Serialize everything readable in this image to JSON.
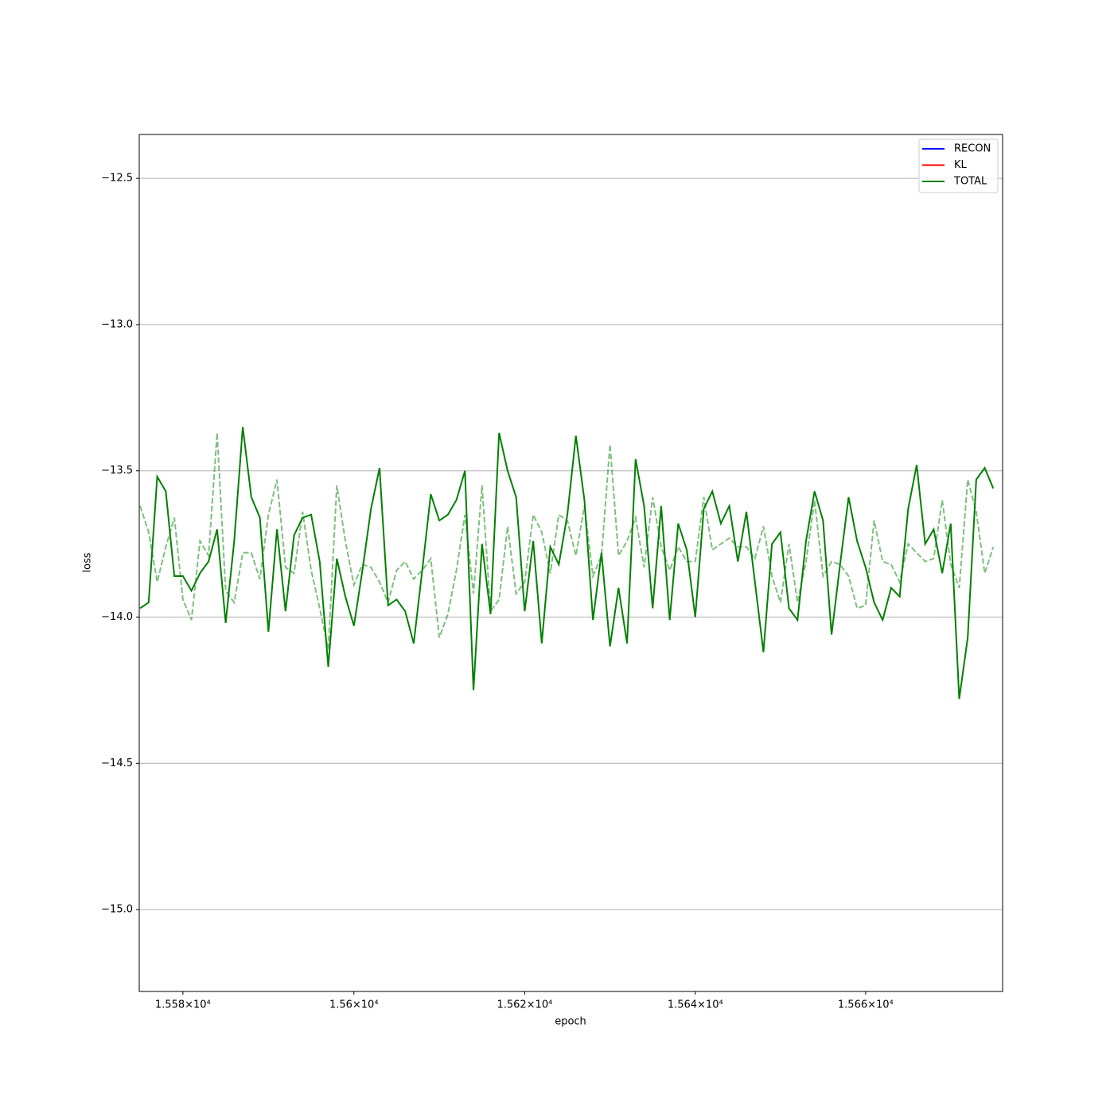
{
  "chart_data": {
    "type": "line",
    "xlabel": "epoch",
    "ylabel": "loss",
    "x": [
      15575,
      15576,
      15577,
      15578,
      15579,
      15580,
      15581,
      15582,
      15583,
      15584,
      15585,
      15586,
      15587,
      15588,
      15589,
      15590,
      15591,
      15592,
      15593,
      15594,
      15595,
      15596,
      15597,
      15598,
      15599,
      15600,
      15601,
      15602,
      15603,
      15604,
      15605,
      15606,
      15607,
      15608,
      15609,
      15610,
      15611,
      15612,
      15613,
      15614,
      15615,
      15616,
      15617,
      15618,
      15619,
      15620,
      15621,
      15622,
      15623,
      15624,
      15625,
      15626,
      15627,
      15628,
      15629,
      15630,
      15631,
      15632,
      15633,
      15634,
      15635,
      15636,
      15637,
      15638,
      15639,
      15640,
      15641,
      15642,
      15643,
      15644,
      15645,
      15646,
      15647,
      15648,
      15649,
      15650,
      15651,
      15652,
      15653,
      15654,
      15655,
      15656,
      15657,
      15658,
      15659,
      15660,
      15661,
      15662,
      15663,
      15664,
      15665,
      15666,
      15667,
      15668,
      15669,
      15670,
      15671,
      15672,
      15673,
      15674,
      15675
    ],
    "series": [
      {
        "color": "#008000",
        "dashed": true,
        "opacity": 0.5,
        "values": [
          -13.62,
          -13.71,
          -13.88,
          -13.76,
          -13.66,
          -13.94,
          -14.01,
          -13.74,
          -13.79,
          -13.37,
          -13.91,
          -13.95,
          -13.78,
          -13.78,
          -13.87,
          -13.65,
          -13.53,
          -13.83,
          -13.85,
          -13.64,
          -13.84,
          -13.97,
          -14.11,
          -13.55,
          -13.74,
          -13.89,
          -13.82,
          -13.83,
          -13.88,
          -13.95,
          -13.84,
          -13.81,
          -13.87,
          -13.84,
          -13.8,
          -14.07,
          -13.99,
          -13.84,
          -13.65,
          -13.92,
          -13.55,
          -13.98,
          -13.94,
          -13.69,
          -13.92,
          -13.88,
          -13.65,
          -13.71,
          -13.85,
          -13.65,
          -13.67,
          -13.79,
          -13.62,
          -13.86,
          -13.79,
          -13.41,
          -13.79,
          -13.74,
          -13.66,
          -13.83,
          -13.59,
          -13.76,
          -13.84,
          -13.76,
          -13.81,
          -13.81,
          -13.59,
          -13.77,
          -13.75,
          -13.73,
          -13.76,
          -13.76,
          -13.8,
          -13.69,
          -13.86,
          -13.95,
          -13.75,
          -13.95,
          -13.81,
          -13.6,
          -13.86,
          -13.81,
          -13.82,
          -13.86,
          -13.97,
          -13.96,
          -13.67,
          -13.81,
          -13.82,
          -13.88,
          -13.75,
          -13.78,
          -13.81,
          -13.8,
          -13.6,
          -13.82,
          -13.9,
          -13.53,
          -13.64,
          -13.85,
          -13.76
        ]
      },
      {
        "color": "#008000",
        "dashed": false,
        "opacity": 1,
        "values": [
          -13.97,
          -13.95,
          -13.52,
          -13.57,
          -13.86,
          -13.86,
          -13.91,
          -13.85,
          -13.81,
          -13.7,
          -14.02,
          -13.74,
          -13.35,
          -13.59,
          -13.66,
          -14.05,
          -13.7,
          -13.98,
          -13.72,
          -13.66,
          -13.65,
          -13.81,
          -14.17,
          -13.8,
          -13.93,
          -14.03,
          -13.84,
          -13.63,
          -13.49,
          -13.96,
          -13.94,
          -13.98,
          -14.09,
          -13.84,
          -13.58,
          -13.67,
          -13.65,
          -13.6,
          -13.5,
          -14.25,
          -13.75,
          -13.99,
          -13.37,
          -13.5,
          -13.59,
          -13.98,
          -13.74,
          -14.09,
          -13.76,
          -13.82,
          -13.65,
          -13.38,
          -13.6,
          -14.01,
          -13.78,
          -14.1,
          -13.9,
          -14.09,
          -13.46,
          -13.62,
          -13.97,
          -13.62,
          -14.01,
          -13.68,
          -13.77,
          -14.0,
          -13.63,
          -13.57,
          -13.68,
          -13.62,
          -13.81,
          -13.64,
          -13.88,
          -14.12,
          -13.75,
          -13.71,
          -13.97,
          -14.01,
          -13.74,
          -13.57,
          -13.67,
          -14.06,
          -13.82,
          -13.59,
          -13.74,
          -13.83,
          -13.95,
          -14.01,
          -13.9,
          -13.93,
          -13.63,
          -13.48,
          -13.75,
          -13.7,
          -13.85,
          -13.68,
          -14.28,
          -14.07,
          -13.53,
          -13.49,
          -13.56
        ]
      }
    ],
    "legend": [
      {
        "name": "RECON",
        "color": "#0000ff"
      },
      {
        "name": "KL",
        "color": "#ff0000"
      },
      {
        "name": "TOTAL",
        "color": "#008000"
      }
    ],
    "legend_position": "upper right",
    "xscale": "log",
    "xlim": [
      15574.9,
      15676.1
    ],
    "xticks": [
      {
        "value": 15580,
        "label": "1.558×10⁴"
      },
      {
        "value": 15600,
        "label": "1.56×10⁴"
      },
      {
        "value": 15620,
        "label": "1.562×10⁴"
      },
      {
        "value": 15640,
        "label": "1.564×10⁴"
      },
      {
        "value": 15660,
        "label": "1.566×10⁴"
      }
    ],
    "ylim": [
      -15.28,
      -12.35
    ],
    "yticks": [
      {
        "value": -15.0,
        "label": "−15.0"
      },
      {
        "value": -14.5,
        "label": "−14.5"
      },
      {
        "value": -14.0,
        "label": "−14.0"
      },
      {
        "value": -13.5,
        "label": "−13.5"
      },
      {
        "value": -13.0,
        "label": "−13.0"
      },
      {
        "value": -12.5,
        "label": "−12.5"
      }
    ],
    "grid": "y"
  }
}
